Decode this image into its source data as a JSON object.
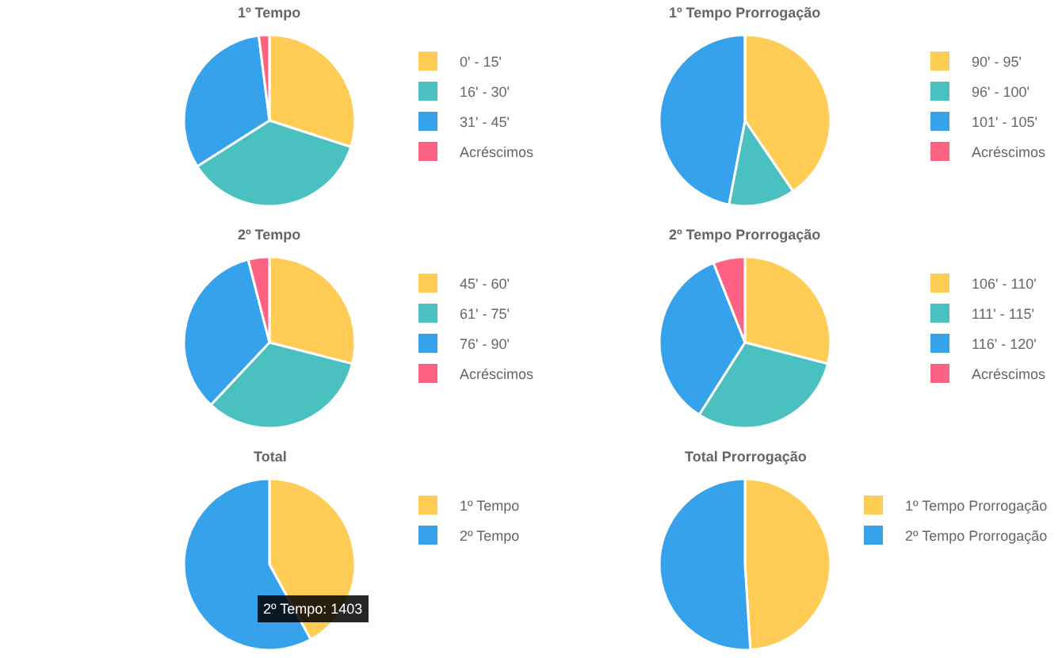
{
  "chart_data": [
    {
      "type": "pie",
      "title": "1º Tempo",
      "categories": [
        "0' - 15'",
        "16' - 30'",
        "31' - 45'",
        "Acréscimos"
      ],
      "values": [
        30,
        36,
        32,
        2
      ],
      "colors": [
        "#ffcd56",
        "#4bc0c0",
        "#36a2eb",
        "#ff6384"
      ],
      "legend": "right"
    },
    {
      "type": "pie",
      "title": "1º Tempo Prorrogação",
      "categories": [
        "90' - 95'",
        "96' - 100'",
        "101' - 105'",
        "Acréscimos"
      ],
      "values": [
        40.5,
        12.5,
        47,
        0
      ],
      "colors": [
        "#ffcd56",
        "#4bc0c0",
        "#36a2eb",
        "#ff6384"
      ],
      "legend": "right"
    },
    {
      "type": "pie",
      "title": "2º Tempo",
      "categories": [
        "45' - 60'",
        "61' - 75'",
        "76' - 90'",
        "Acréscimos"
      ],
      "values": [
        29,
        33,
        34,
        4
      ],
      "colors": [
        "#ffcd56",
        "#4bc0c0",
        "#36a2eb",
        "#ff6384"
      ],
      "legend": "right"
    },
    {
      "type": "pie",
      "title": "2º Tempo Prorrogação",
      "categories": [
        "106' - 110'",
        "111' - 115'",
        "116' - 120'",
        "Acréscimos"
      ],
      "values": [
        29,
        30,
        35,
        6
      ],
      "colors": [
        "#ffcd56",
        "#4bc0c0",
        "#36a2eb",
        "#ff6384"
      ],
      "legend": "right"
    },
    {
      "type": "pie",
      "title": "Total",
      "categories": [
        "1º Tempo",
        "2º Tempo"
      ],
      "values": [
        42,
        58
      ],
      "colors": [
        "#ffcd56",
        "#36a2eb"
      ],
      "legend": "right",
      "annotations": [
        "2º Tempo: 1403"
      ]
    },
    {
      "type": "pie",
      "title": "Total Prorrogação",
      "categories": [
        "1º Tempo Prorrogação",
        "2º Tempo Prorrogação"
      ],
      "values": [
        49,
        51
      ],
      "colors": [
        "#ffcd56",
        "#36a2eb"
      ],
      "legend": "right"
    }
  ]
}
